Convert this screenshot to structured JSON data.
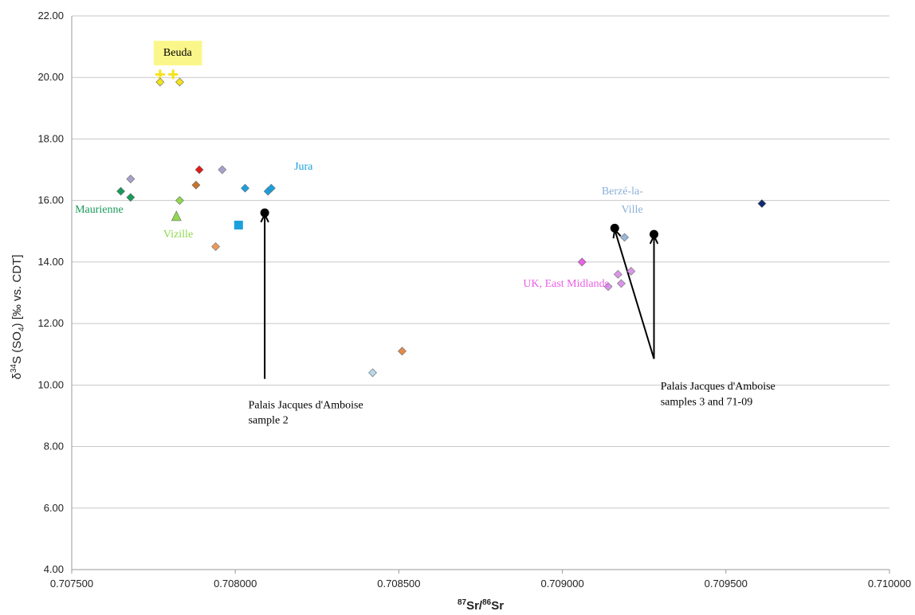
{
  "chart_data": {
    "type": "scatter",
    "title": "",
    "xlabel": {
      "sup1": "87",
      "base1": "Sr/",
      "sup2": "86",
      "base2": "Sr"
    },
    "ylabel": {
      "pre": "δ",
      "sup": "34",
      "mid": "S (SO",
      "sub": "4",
      "post": ") [‰ vs. CDT]"
    },
    "xlim": [
      0.7075,
      0.71
    ],
    "ylim": [
      4,
      22
    ],
    "x_ticks": [
      {
        "value": 0.7075,
        "label": "0.707500"
      },
      {
        "value": 0.708,
        "label": "0.708000"
      },
      {
        "value": 0.7085,
        "label": "0.708500"
      },
      {
        "value": 0.709,
        "label": "0.709000"
      },
      {
        "value": 0.7095,
        "label": "0.709500"
      },
      {
        "value": 0.71,
        "label": "0.710000"
      }
    ],
    "y_ticks": [
      {
        "value": 4,
        "label": "4.00"
      },
      {
        "value": 6,
        "label": "6.00"
      },
      {
        "value": 8,
        "label": "8.00"
      },
      {
        "value": 10,
        "label": "10.00"
      },
      {
        "value": 12,
        "label": "12.00"
      },
      {
        "value": 14,
        "label": "14.00"
      },
      {
        "value": 16,
        "label": "16.00"
      },
      {
        "value": 18,
        "label": "18.00"
      },
      {
        "value": 20,
        "label": "20.00"
      },
      {
        "value": 22,
        "label": "22.00"
      }
    ],
    "grid": "horizontal",
    "legend": "none",
    "points": [
      {
        "x": 0.70777,
        "y": 20.1,
        "marker": "cross",
        "color": "#f5e31a"
      },
      {
        "x": 0.70781,
        "y": 20.1,
        "marker": "cross",
        "color": "#f5e31a"
      },
      {
        "x": 0.70777,
        "y": 19.85,
        "marker": "diamond",
        "color": "#f5e31a"
      },
      {
        "x": 0.70783,
        "y": 19.85,
        "marker": "diamond",
        "color": "#f5e31a"
      },
      {
        "x": 0.70765,
        "y": 16.3,
        "marker": "diamond",
        "color": "#1a9a5a"
      },
      {
        "x": 0.70768,
        "y": 16.1,
        "marker": "diamond",
        "color": "#1a9a5a"
      },
      {
        "x": 0.70768,
        "y": 16.7,
        "marker": "diamond",
        "color": "#a9a1c9"
      },
      {
        "x": 0.70796,
        "y": 17.0,
        "marker": "diamond",
        "color": "#a9a1c9"
      },
      {
        "x": 0.70789,
        "y": 17.0,
        "marker": "diamond",
        "color": "#e01b1b"
      },
      {
        "x": 0.70788,
        "y": 16.5,
        "marker": "diamond",
        "color": "#c8732a"
      },
      {
        "x": 0.70783,
        "y": 16.0,
        "marker": "diamond",
        "color": "#8fd84e"
      },
      {
        "x": 0.70782,
        "y": 15.5,
        "marker": "triangle",
        "color": "#8fd84e"
      },
      {
        "x": 0.70794,
        "y": 14.5,
        "marker": "diamond",
        "color": "#eb9a5a"
      },
      {
        "x": 0.70803,
        "y": 16.4,
        "marker": "diamond",
        "color": "#1aa0dc"
      },
      {
        "x": 0.7081,
        "y": 16.3,
        "marker": "diamond",
        "color": "#1aa0dc"
      },
      {
        "x": 0.70811,
        "y": 16.4,
        "marker": "diamond",
        "color": "#1aa0dc"
      },
      {
        "x": 0.70801,
        "y": 15.2,
        "marker": "square",
        "color": "#1aa0dc"
      },
      {
        "x": 0.70809,
        "y": 15.6,
        "marker": "circle",
        "color": "#000000"
      },
      {
        "x": 0.70842,
        "y": 10.4,
        "marker": "diamond",
        "color": "#b7d7ea"
      },
      {
        "x": 0.70851,
        "y": 11.1,
        "marker": "diamond",
        "color": "#e58a4a"
      },
      {
        "x": 0.70906,
        "y": 14.0,
        "marker": "diamond",
        "color": "#e861e6"
      },
      {
        "x": 0.70914,
        "y": 13.2,
        "marker": "diamond",
        "color": "#d996e8"
      },
      {
        "x": 0.70917,
        "y": 13.6,
        "marker": "diamond",
        "color": "#d996e8"
      },
      {
        "x": 0.70918,
        "y": 13.3,
        "marker": "diamond",
        "color": "#d996e8"
      },
      {
        "x": 0.70921,
        "y": 13.7,
        "marker": "diamond",
        "color": "#d996e8"
      },
      {
        "x": 0.70919,
        "y": 14.8,
        "marker": "diamond",
        "color": "#9ab8d8"
      },
      {
        "x": 0.70916,
        "y": 15.1,
        "marker": "circle",
        "color": "#000000"
      },
      {
        "x": 0.70928,
        "y": 14.9,
        "marker": "circle",
        "color": "#000000"
      },
      {
        "x": 0.70961,
        "y": 15.9,
        "marker": "diamond",
        "color": "#0f2a6e"
      }
    ],
    "annotations": [
      {
        "text": "Beuda",
        "x": 0.70778,
        "y": 20.7,
        "color": "#000000",
        "highlight": "#fbf68a"
      },
      {
        "text": "Jura",
        "x": 0.70818,
        "y": 17.0,
        "color": "#1aa0dc"
      },
      {
        "text": "Maurienne",
        "x": 0.70751,
        "y": 15.6,
        "color": "#1a9a5a"
      },
      {
        "text": "Vizille",
        "x": 0.70778,
        "y": 14.8,
        "color": "#8fd84e"
      },
      {
        "text": "Berzé-la-",
        "x": 0.70912,
        "y": 16.2,
        "color": "#8ab0d8"
      },
      {
        "text": "Ville",
        "x": 0.70918,
        "y": 15.6,
        "color": "#8ab0d8"
      },
      {
        "text": "UK, East Midlands",
        "x": 0.70888,
        "y": 13.2,
        "color": "#e861e6"
      },
      {
        "text": "Palais Jacques d'Amboise",
        "x": 0.70804,
        "y": 9.25,
        "color": "#000000"
      },
      {
        "text": "sample 2",
        "x": 0.70804,
        "y": 8.75,
        "color": "#000000"
      },
      {
        "text": "Palais Jacques d'Amboise",
        "x": 0.7093,
        "y": 9.85,
        "color": "#000000"
      },
      {
        "text": "samples 3 and 71-09",
        "x": 0.7093,
        "y": 9.35,
        "color": "#000000"
      }
    ],
    "arrows": [
      {
        "from": [
          0.70809,
          10.2
        ],
        "to": [
          0.70809,
          15.55
        ]
      },
      {
        "from": [
          0.70928,
          10.85
        ],
        "to": [
          0.70916,
          15.05
        ]
      },
      {
        "from": [
          0.70928,
          10.85
        ],
        "to": [
          0.70928,
          14.85
        ]
      }
    ]
  }
}
